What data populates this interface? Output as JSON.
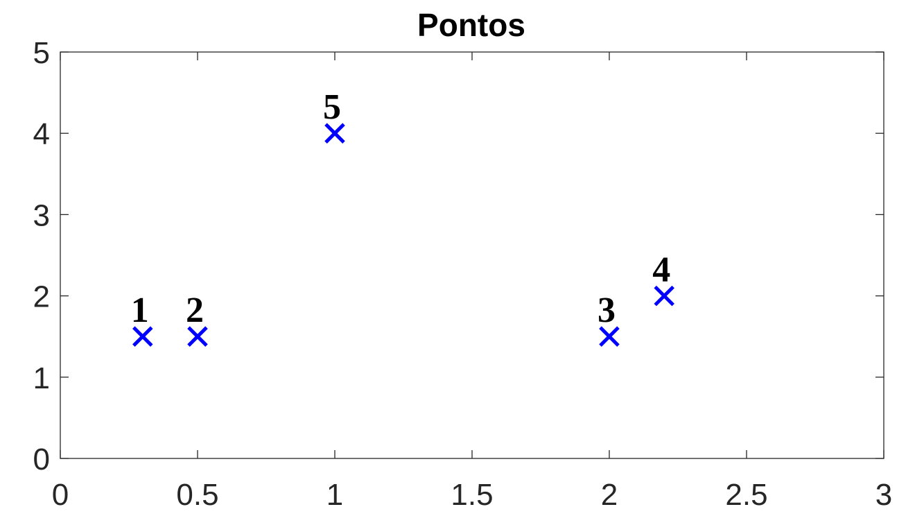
{
  "chart_data": {
    "type": "scatter",
    "title": "Pontos",
    "xlabel": "",
    "ylabel": "",
    "xlim": [
      0,
      3
    ],
    "ylim": [
      0,
      5
    ],
    "xticks": [
      0,
      0.5,
      1,
      1.5,
      2,
      2.5,
      3
    ],
    "yticks": [
      0,
      1,
      2,
      3,
      4,
      5
    ],
    "xtick_labels": [
      "0",
      "0.5",
      "1",
      "1.5",
      "2",
      "2.5",
      "3"
    ],
    "ytick_labels": [
      "0",
      "1",
      "2",
      "3",
      "4",
      "5"
    ],
    "grid": false,
    "marker": "x",
    "marker_color": "#0000ff",
    "series": [
      {
        "points": [
          {
            "x": 0.3,
            "y": 1.5,
            "label": "1"
          },
          {
            "x": 0.5,
            "y": 1.5,
            "label": "2"
          },
          {
            "x": 2.0,
            "y": 1.5,
            "label": "3"
          },
          {
            "x": 2.2,
            "y": 2.0,
            "label": "4"
          },
          {
            "x": 1.0,
            "y": 4.0,
            "label": "5"
          }
        ]
      }
    ]
  }
}
